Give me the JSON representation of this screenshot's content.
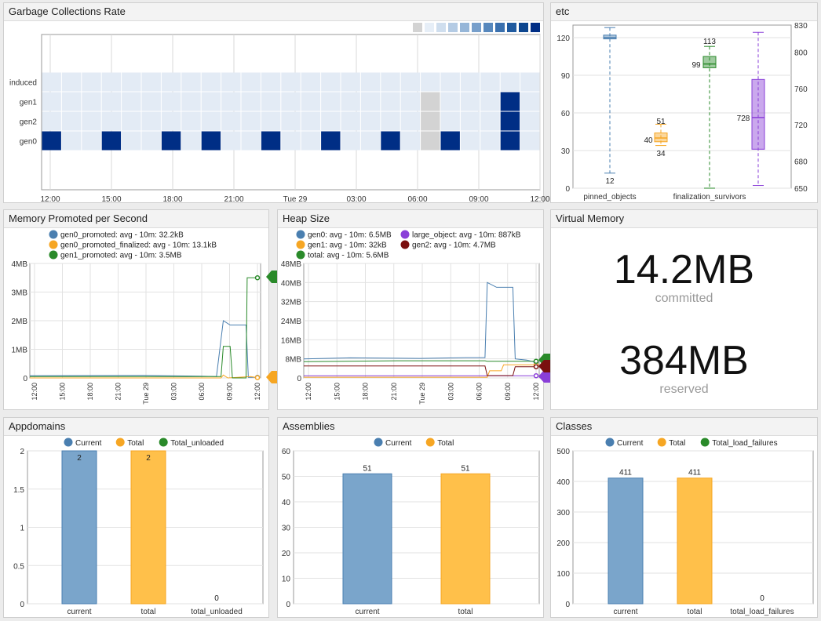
{
  "panels": {
    "gc_rate": "Garbage Collections Rate",
    "etc": "etc",
    "mem_promoted": "Memory Promoted per Second",
    "heap": "Heap Size",
    "virtual_memory": "Virtual Memory",
    "appdomains": "Appdomains",
    "assemblies": "Assemblies",
    "classes": "Classes"
  },
  "colors": {
    "blue": "#4a7fb0",
    "orange": "#f6a623",
    "green": "#2a8a2a",
    "purple": "#8a3fd8",
    "darkred": "#7a0f0f",
    "navy": "#002e85",
    "lightcell": "#e3ebf5",
    "graycell": "#d3d3d3"
  },
  "virtual_memory": {
    "committed_value": "14.2MB",
    "committed_label": "committed",
    "reserved_value": "384MB",
    "reserved_label": "reserved"
  },
  "chart_data": [
    {
      "id": "gc_rate",
      "type": "heatmap",
      "rows": [
        "induced",
        "gen1",
        "gen2",
        "gen0"
      ],
      "x_ticks": [
        "12:00",
        "15:00",
        "18:00",
        "21:00",
        "Tue 29",
        "03:00",
        "06:00",
        "09:00",
        "12:00"
      ],
      "legend_scale_colors": [
        "#d3d3d3",
        "#e6eef7",
        "#cfdeee",
        "#b4cbe4",
        "#96b6d8",
        "#779fcb",
        "#5788bd",
        "#3a70ae",
        "#1f5a9f",
        "#0d468f",
        "#002e85"
      ],
      "dark_cells": {
        "gen0": [
          0,
          3,
          6,
          8,
          11,
          14,
          17,
          20,
          23
        ],
        "gen1": [
          23
        ],
        "gen2": [
          23
        ]
      },
      "gray_cells": {
        "gen1": [
          19
        ],
        "gen2": [
          19
        ],
        "gen0": [
          19
        ]
      },
      "columns": 25
    },
    {
      "id": "etc",
      "type": "box",
      "y_left_ticks": [
        0,
        30,
        60,
        90,
        120
      ],
      "y_right_ticks": [
        650,
        680,
        720,
        760,
        800,
        830
      ],
      "x_labels": [
        "pinned_objects",
        "finalization_survivors"
      ],
      "series": [
        {
          "name": "pinned_objects",
          "min": 12,
          "q1": 119,
          "median": 120,
          "q3": 122,
          "max": 128,
          "axis": "left",
          "color": "#4a7fb0",
          "labels": [
            "12"
          ]
        },
        {
          "name": "",
          "min": 34,
          "q1": 37,
          "median": 40,
          "q3": 44,
          "max": 51,
          "axis": "left",
          "color": "#f6a623",
          "labels": [
            "51",
            "40",
            "34"
          ]
        },
        {
          "name": "finalization_survivors",
          "min": 0,
          "q1": 96,
          "median": 99,
          "q3": 105,
          "max": 113,
          "axis": "left",
          "color": "#2a8a2a",
          "labels": [
            "113",
            "99"
          ]
        },
        {
          "name": "",
          "min": 653,
          "q1": 693,
          "median": 728,
          "q3": 770,
          "max": 822,
          "axis": "right",
          "color": "#8a3fd8",
          "labels": [
            "728"
          ]
        }
      ]
    },
    {
      "id": "mem_promoted",
      "type": "line",
      "legend": [
        "gen0_promoted: avg - 10m: 32.2kB",
        "gen0_promoted_finalized: avg - 10m: 13.1kB",
        "gen1_promoted: avg - 10m: 3.5MB"
      ],
      "y_ticks": [
        "0",
        "1MB",
        "2MB",
        "3MB",
        "4MB"
      ],
      "y_max": 4,
      "x_ticks": [
        "12:00",
        "15:00",
        "18:00",
        "21:00",
        "Tue 29",
        "03:00",
        "06:00",
        "09:00",
        "12:00"
      ],
      "badges": [
        "3.5MB",
        "13.1kB"
      ],
      "series": [
        {
          "name": "gen0_promoted",
          "color": "#4a7fb0",
          "points": [
            [
              0,
              0.08
            ],
            [
              0.5,
              0.09
            ],
            [
              0.75,
              0.06
            ],
            [
              0.82,
              0.05
            ],
            [
              0.85,
              2.0
            ],
            [
              0.88,
              1.85
            ],
            [
              0.95,
              1.85
            ],
            [
              0.96,
              0.02
            ],
            [
              1,
              0.02
            ]
          ]
        },
        {
          "name": "gen0_promoted_finalized",
          "color": "#f6a623",
          "points": [
            [
              0,
              0
            ],
            [
              0.84,
              0
            ],
            [
              0.85,
              0.1
            ],
            [
              0.87,
              0
            ],
            [
              0.97,
              0.05
            ],
            [
              1,
              0.01
            ]
          ]
        },
        {
          "name": "gen1_promoted",
          "color": "#2a8a2a",
          "points": [
            [
              0,
              0.05
            ],
            [
              0.84,
              0.05
            ],
            [
              0.85,
              1.1
            ],
            [
              0.88,
              1.1
            ],
            [
              0.89,
              0
            ],
            [
              0.95,
              0
            ],
            [
              0.955,
              3.5
            ],
            [
              1,
              3.5
            ]
          ]
        }
      ]
    },
    {
      "id": "heap",
      "type": "line",
      "legend": [
        "gen0: avg - 10m: 6.5MB",
        "large_object: avg - 10m: 887kB",
        "gen1: avg - 10m: 32kB",
        "gen2: avg - 10m: 4.7MB",
        "total: avg - 10m: 5.6MB"
      ],
      "legend_colors": [
        "#4a7fb0",
        "#8a3fd8",
        "#f6a623",
        "#7a0f0f",
        "#2a8a2a"
      ],
      "y_ticks": [
        "0",
        "8MB",
        "16MB",
        "24MB",
        "32MB",
        "40MB",
        "48MB"
      ],
      "y_max": 48,
      "x_ticks": [
        "12:00",
        "15:00",
        "18:00",
        "21:00",
        "Tue 29",
        "03:00",
        "06:00",
        "09:00",
        "12:00"
      ],
      "badges": [
        "4.7MB",
        "887kB"
      ],
      "series": [
        {
          "name": "gen0",
          "color": "#4a7fb0",
          "points": [
            [
              0,
              8
            ],
            [
              0.2,
              8.4
            ],
            [
              0.5,
              8.2
            ],
            [
              0.7,
              8.5
            ],
            [
              0.78,
              8.5
            ],
            [
              0.79,
              40
            ],
            [
              0.83,
              38
            ],
            [
              0.9,
              38
            ],
            [
              0.91,
              8
            ],
            [
              0.96,
              7.5
            ],
            [
              1,
              6.5
            ]
          ]
        },
        {
          "name": "large_object",
          "color": "#8a3fd8",
          "points": [
            [
              0,
              0.9
            ],
            [
              1,
              0.9
            ]
          ]
        },
        {
          "name": "gen1",
          "color": "#f6a623",
          "points": [
            [
              0,
              0.3
            ],
            [
              0.79,
              0.3
            ],
            [
              0.8,
              3
            ],
            [
              0.85,
              3
            ],
            [
              0.86,
              5.5
            ],
            [
              1,
              5.5
            ]
          ]
        },
        {
          "name": "gen2",
          "color": "#7a0f0f",
          "points": [
            [
              0,
              5
            ],
            [
              0.78,
              5
            ],
            [
              0.79,
              1
            ],
            [
              0.9,
              1
            ],
            [
              0.91,
              4.7
            ],
            [
              1,
              4.7
            ]
          ]
        },
        {
          "name": "total",
          "color": "#2a8a2a",
          "points": [
            [
              0,
              6.8
            ],
            [
              0.4,
              7.2
            ],
            [
              0.78,
              7.2
            ],
            [
              0.79,
              7
            ],
            [
              1,
              7
            ]
          ]
        }
      ]
    },
    {
      "id": "appdomains",
      "type": "bar",
      "legend": [
        "Current",
        "Total",
        "Total_unloaded"
      ],
      "categories": [
        "current",
        "total",
        "total_unloaded"
      ],
      "values": [
        2,
        2,
        0
      ],
      "data_labels": [
        "2",
        "2",
        "0"
      ],
      "y_ticks": [
        "0",
        "0.5",
        "1",
        "1.5",
        "2"
      ],
      "ylim": [
        0,
        2
      ]
    },
    {
      "id": "assemblies",
      "type": "bar",
      "legend": [
        "Current",
        "Total"
      ],
      "categories": [
        "current",
        "total"
      ],
      "values": [
        51,
        51
      ],
      "data_labels": [
        "51",
        "51"
      ],
      "y_ticks": [
        "0",
        "10",
        "20",
        "30",
        "40",
        "50",
        "60"
      ],
      "ylim": [
        0,
        60
      ]
    },
    {
      "id": "classes",
      "type": "bar",
      "legend": [
        "Current",
        "Total",
        "Total_load_failures"
      ],
      "categories": [
        "current",
        "total",
        "total_load_failures"
      ],
      "values": [
        411,
        411,
        0
      ],
      "data_labels": [
        "411",
        "411",
        "0"
      ],
      "y_ticks": [
        "0",
        "100",
        "200",
        "300",
        "400",
        "500"
      ],
      "ylim": [
        0,
        500
      ]
    }
  ]
}
